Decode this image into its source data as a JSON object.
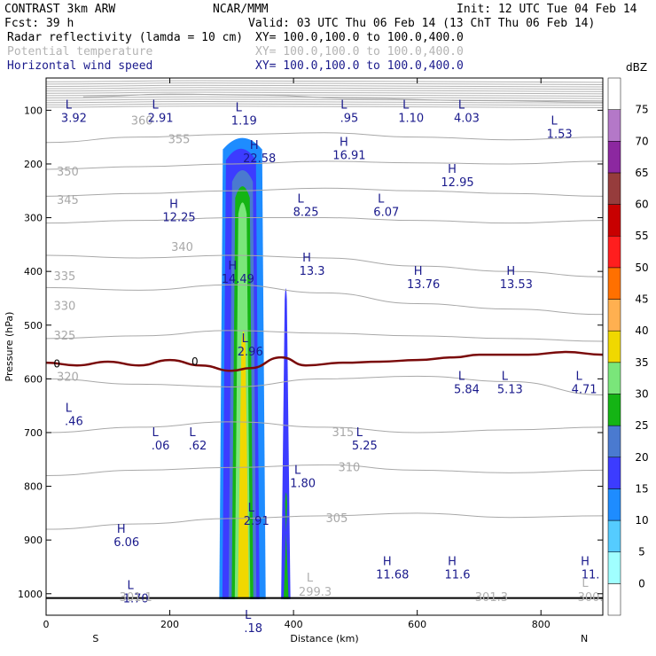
{
  "header": {
    "line1_left": "CONTRAST  3km ARW",
    "line1_mid": "NCAR/MMM",
    "line1_right": "Init: 12 UTC Tue 04 Feb 14",
    "line2_left": "Fcst:   39 h",
    "line2_right": "Valid: 03 UTC Thu 06 Feb 14 (13 ChT Thu 06 Feb 14)",
    "fields": [
      {
        "name": "Radar reflectivity (lamda = 10 cm)",
        "xy": "XY= 100.0,100.0 to 100.0,400.0",
        "color": "#000000"
      },
      {
        "name": "Potential temperature",
        "xy": "XY= 100.0,100.0 to 100.0,400.0",
        "color": "#b4b4b4"
      },
      {
        "name": "Horizontal wind speed",
        "xy": "XY= 100.0,100.0 to 100.0,400.0",
        "color": "#1a1a8c"
      }
    ]
  },
  "chart_data": {
    "type": "heatmap",
    "xlabel": "Distance (km)",
    "ylabel": "Pressure (hPa)",
    "xlim": [
      0,
      900
    ],
    "ylim": [
      1040,
      40
    ],
    "x_ticks": [
      0,
      200,
      400,
      600,
      800
    ],
    "y_ticks": [
      100,
      200,
      300,
      400,
      500,
      600,
      700,
      800,
      900,
      1000
    ],
    "x_end_labels": {
      "left": "S",
      "right": "N"
    },
    "colorbar": {
      "unit": "dBZ",
      "levels": [
        0,
        5,
        10,
        15,
        20,
        25,
        30,
        35,
        40,
        45,
        50,
        55,
        60,
        65,
        70,
        75
      ],
      "colors": [
        "#ffffff",
        "#a0ffff",
        "#55ccff",
        "#1e8cff",
        "#3c3cff",
        "#4a7ad0",
        "#14b414",
        "#7ae67a",
        "#f0d800",
        "#ffb050",
        "#ff7000",
        "#ff1e1e",
        "#c80000",
        "#963c3c",
        "#8c28a0",
        "#b478c8",
        "#ffffff"
      ]
    },
    "theta_contours": [
      {
        "label": "360",
        "pts": [
          [
            60,
            75
          ],
          [
            200,
            70
          ],
          [
            350,
            72
          ],
          [
            500,
            78
          ],
          [
            700,
            82
          ],
          [
            900,
            85
          ]
        ],
        "label_x": 155,
        "label_p": 120
      },
      {
        "label": "355",
        "pts": [
          [
            0,
            160
          ],
          [
            150,
            150
          ],
          [
            300,
            145
          ],
          [
            450,
            142
          ],
          [
            600,
            150
          ],
          [
            750,
            155
          ],
          [
            900,
            150
          ]
        ],
        "label_x": 215,
        "label_p": 155
      },
      {
        "label": "350",
        "pts": [
          [
            0,
            210
          ],
          [
            150,
            205
          ],
          [
            300,
            200
          ],
          [
            450,
            195
          ],
          [
            600,
            198
          ],
          [
            750,
            200
          ],
          [
            900,
            195
          ]
        ],
        "label_x": 35,
        "label_p": 215
      },
      {
        "label": "345",
        "pts": [
          [
            0,
            260
          ],
          [
            150,
            255
          ],
          [
            300,
            250
          ],
          [
            450,
            245
          ],
          [
            600,
            250
          ],
          [
            750,
            255
          ],
          [
            900,
            260
          ]
        ],
        "label_x": 35,
        "label_p": 268
      },
      {
        "label": "340",
        "pts": [
          [
            0,
            310
          ],
          [
            150,
            305
          ],
          [
            300,
            300
          ],
          [
            450,
            300
          ],
          [
            600,
            305
          ],
          [
            750,
            310
          ],
          [
            900,
            305
          ]
        ],
        "label_x": 220,
        "label_p": 355
      },
      {
        "label": "335",
        "pts": [
          [
            0,
            370
          ],
          [
            150,
            375
          ],
          [
            300,
            370
          ],
          [
            450,
            375
          ],
          [
            600,
            390
          ],
          [
            750,
            400
          ],
          [
            900,
            410
          ]
        ],
        "label_x": 30,
        "label_p": 410
      },
      {
        "label": "330",
        "pts": [
          [
            0,
            430
          ],
          [
            150,
            435
          ],
          [
            300,
            425
          ],
          [
            450,
            440
          ],
          [
            600,
            460
          ],
          [
            750,
            470
          ],
          [
            900,
            480
          ]
        ],
        "label_x": 30,
        "label_p": 465
      },
      {
        "label": "325",
        "pts": [
          [
            0,
            525
          ],
          [
            150,
            520
          ],
          [
            300,
            510
          ],
          [
            450,
            515
          ],
          [
            600,
            520
          ],
          [
            750,
            525
          ],
          [
            900,
            530
          ]
        ],
        "label_x": 30,
        "label_p": 520
      },
      {
        "label": "320",
        "pts": [
          [
            0,
            600
          ],
          [
            150,
            610
          ],
          [
            300,
            615
          ],
          [
            450,
            600
          ],
          [
            600,
            595
          ],
          [
            750,
            605
          ],
          [
            900,
            630
          ]
        ],
        "label_x": 35,
        "label_p": 597
      },
      {
        "label": "315",
        "pts": [
          [
            0,
            700
          ],
          [
            150,
            690
          ],
          [
            300,
            680
          ],
          [
            450,
            690
          ],
          [
            600,
            700
          ],
          [
            750,
            695
          ],
          [
            900,
            690
          ]
        ],
        "label_x": 480,
        "label_p": 700
      },
      {
        "label": "310",
        "pts": [
          [
            0,
            780
          ],
          [
            150,
            770
          ],
          [
            300,
            765
          ],
          [
            450,
            760
          ],
          [
            600,
            770
          ],
          [
            750,
            775
          ],
          [
            900,
            770
          ]
        ],
        "label_x": 490,
        "label_p": 765
      },
      {
        "label": "305",
        "pts": [
          [
            0,
            880
          ],
          [
            150,
            870
          ],
          [
            300,
            860
          ],
          [
            450,
            855
          ],
          [
            600,
            850
          ],
          [
            750,
            858
          ],
          [
            900,
            855
          ]
        ],
        "label_x": 470,
        "label_p": 860
      }
    ],
    "tropopause_line": {
      "label": "0",
      "pts": [
        [
          0,
          570
        ],
        [
          50,
          575
        ],
        [
          100,
          568
        ],
        [
          150,
          575
        ],
        [
          200,
          565
        ],
        [
          250,
          575
        ],
        [
          300,
          585
        ],
        [
          330,
          580
        ],
        [
          380,
          560
        ],
        [
          420,
          575
        ],
        [
          480,
          570
        ],
        [
          540,
          568
        ],
        [
          600,
          565
        ],
        [
          660,
          560
        ],
        [
          700,
          555
        ],
        [
          780,
          555
        ],
        [
          840,
          550
        ],
        [
          900,
          555
        ]
      ]
    },
    "reflectivity_cells": [
      {
        "x0": 280,
        "x1": 355,
        "p_top": 140,
        "p_bot": 1010,
        "dbz": 10
      },
      {
        "x0": 285,
        "x1": 345,
        "p_top": 160,
        "p_bot": 1010,
        "dbz": 15
      },
      {
        "x0": 295,
        "x1": 340,
        "p_top": 200,
        "p_bot": 1010,
        "dbz": 20
      },
      {
        "x0": 300,
        "x1": 335,
        "p_top": 230,
        "p_bot": 1010,
        "dbz": 25
      },
      {
        "x0": 305,
        "x1": 330,
        "p_top": 260,
        "p_bot": 1010,
        "dbz": 30
      },
      {
        "x0": 310,
        "x1": 328,
        "p_top": 500,
        "p_bot": 1010,
        "dbz": 35
      },
      {
        "x0": 380,
        "x1": 395,
        "p_top": 420,
        "p_bot": 1010,
        "dbz": 15
      },
      {
        "x0": 384,
        "x1": 392,
        "p_top": 800,
        "p_bot": 1010,
        "dbz": 25
      }
    ],
    "wind_labels": [
      {
        "t": "L",
        "v": "3.92",
        "x": 45,
        "p": 90
      },
      {
        "t": "L",
        "v": "2.91",
        "x": 185,
        "p": 90
      },
      {
        "t": "L",
        "v": "1.19",
        "x": 320,
        "p": 95
      },
      {
        "t": "L",
        "v": ".95",
        "x": 490,
        "p": 90
      },
      {
        "t": "L",
        "v": "1.10",
        "x": 590,
        "p": 90
      },
      {
        "t": "L",
        "v": "4.03",
        "x": 680,
        "p": 90
      },
      {
        "t": "L",
        "v": "1.53",
        "x": 830,
        "p": 120
      },
      {
        "t": "H",
        "v": "22.58",
        "x": 345,
        "p": 165
      },
      {
        "t": "H",
        "v": "16.91",
        "x": 490,
        "p": 160
      },
      {
        "t": "H",
        "v": "12.95",
        "x": 665,
        "p": 210
      },
      {
        "t": "H",
        "v": "12.25",
        "x": 215,
        "p": 275
      },
      {
        "t": "L",
        "v": "8.25",
        "x": 420,
        "p": 265
      },
      {
        "t": "L",
        "v": "6.07",
        "x": 550,
        "p": 265
      },
      {
        "t": "H",
        "v": "14.49",
        "x": 310,
        "p": 390
      },
      {
        "t": "H",
        "v": "13.3",
        "x": 430,
        "p": 375
      },
      {
        "t": "H",
        "v": "13.76",
        "x": 610,
        "p": 400
      },
      {
        "t": "H",
        "v": "13.53",
        "x": 760,
        "p": 400
      },
      {
        "t": "L",
        "v": "2.96",
        "x": 330,
        "p": 525
      },
      {
        "t": "L",
        "v": "5.84",
        "x": 680,
        "p": 595
      },
      {
        "t": "L",
        "v": "5.13",
        "x": 750,
        "p": 595
      },
      {
        "t": "L",
        "v": "4.71",
        "x": 870,
        "p": 595
      },
      {
        "t": "L",
        "v": ".46",
        "x": 45,
        "p": 655
      },
      {
        "t": "L",
        "v": ".06",
        "x": 185,
        "p": 700
      },
      {
        "t": "L",
        "v": ".62",
        "x": 245,
        "p": 700
      },
      {
        "t": "L",
        "v": "5.25",
        "x": 515,
        "p": 700
      },
      {
        "t": "L",
        "v": "1.80",
        "x": 415,
        "p": 770
      },
      {
        "t": "L",
        "v": "2.91",
        "x": 340,
        "p": 840
      },
      {
        "t": "H",
        "v": "6.06",
        "x": 130,
        "p": 880
      },
      {
        "t": "H",
        "v": "11.68",
        "x": 560,
        "p": 940
      },
      {
        "t": "H",
        "v": "11.6",
        "x": 665,
        "p": 940
      },
      {
        "t": "H",
        "v": "11.",
        "x": 880,
        "p": 940
      },
      {
        "t": "L",
        "v": "1.70",
        "x": 145,
        "p": 985
      },
      {
        "t": "L",
        "v": ".18",
        "x": 335,
        "p": 1040
      }
    ],
    "theta_extrema": [
      {
        "v": "301.1",
        "x": 145,
        "p": 1010
      },
      {
        "t": "L",
        "v": "299.3",
        "x": 435,
        "p": 1000
      },
      {
        "v": "301.3",
        "x": 720,
        "p": 1010
      },
      {
        "t": "L",
        "v": "300.",
        "x": 880,
        "p": 1010
      }
    ]
  }
}
